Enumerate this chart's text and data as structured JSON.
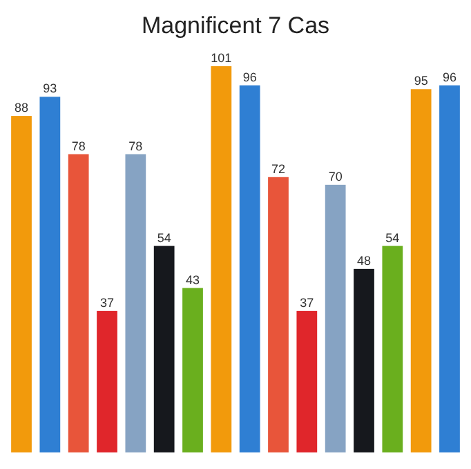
{
  "chart_data": {
    "type": "bar",
    "title": "Magnificent 7 Cas",
    "categories": [
      null,
      null,
      null,
      null,
      null,
      null,
      null,
      null,
      null,
      null,
      null,
      null,
      null,
      null,
      null,
      null
    ],
    "data_labels": true,
    "ylim": [
      0,
      101
    ],
    "values": [
      88,
      93,
      78,
      37,
      78,
      54,
      43,
      101,
      96,
      72,
      37,
      70,
      48,
      54,
      95,
      96
    ],
    "colors": [
      "#f29a0c",
      "#2f7fd3",
      "#e8553a",
      "#e0262b",
      "#86a3c3",
      "#16181d",
      "#6aaf1e",
      "#f29a0c",
      "#2f7fd3",
      "#e8553a",
      "#e0262b",
      "#86a3c3",
      "#16181d",
      "#6aaf1e",
      "#f29a0c",
      "#2f7fd3"
    ]
  }
}
